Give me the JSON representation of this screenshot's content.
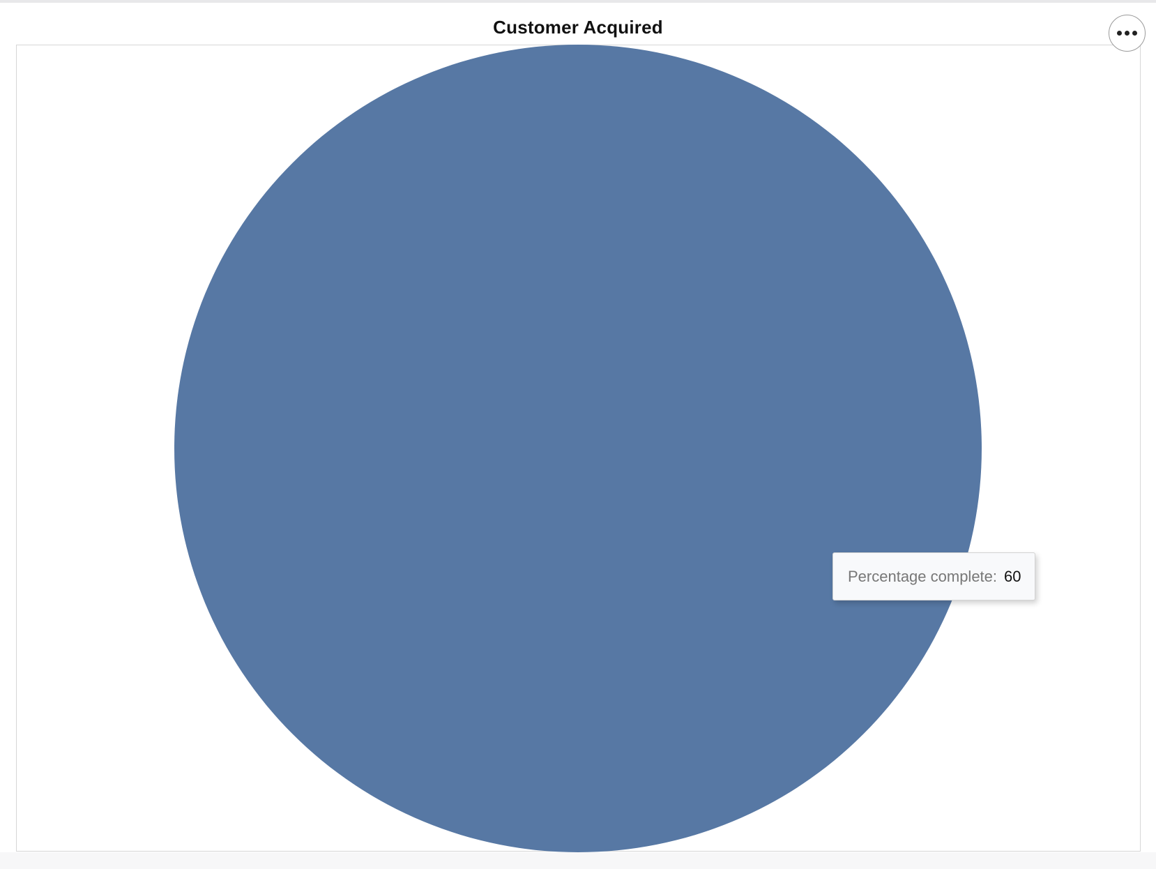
{
  "chart_data": {
    "type": "pie",
    "title": "Customer Acquired",
    "slices": [
      {
        "label": "",
        "value": 60,
        "color": "#5778a4"
      }
    ],
    "tooltip": {
      "label": "Percentage complete:",
      "value": "60"
    },
    "legend": "none"
  },
  "toolbar": {
    "menu_icon": "more-horizontal-icon"
  },
  "colors": {
    "slice": "#5778a4",
    "frame_border": "#d6d6d6",
    "tooltip_bg": "#f8f9fb"
  }
}
